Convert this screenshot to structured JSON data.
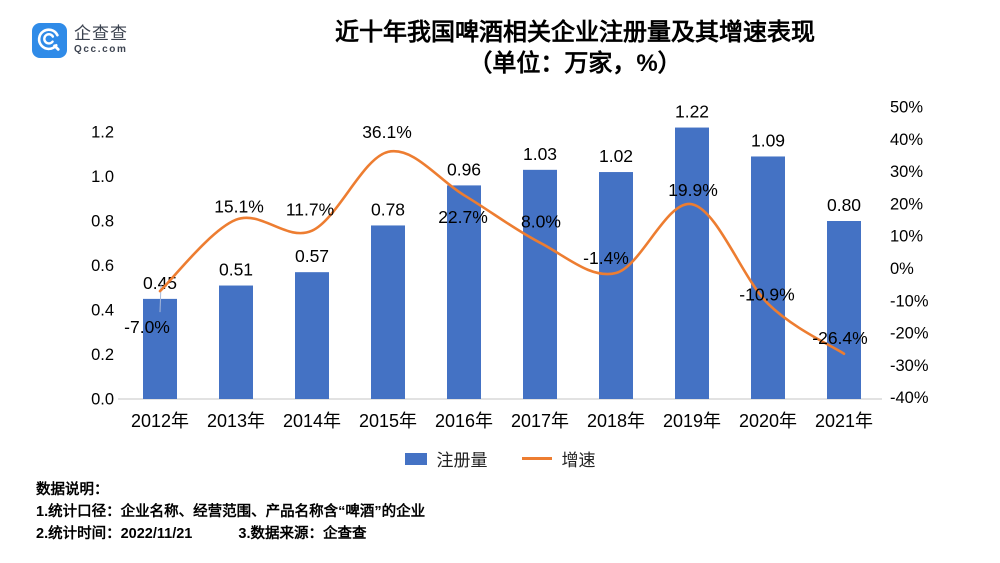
{
  "brand": {
    "name": "企查查",
    "domain": "Qcc.com",
    "blue": "#2F8BE8"
  },
  "title": {
    "line1": "近十年我国啤酒相关企业注册量及其增速表现",
    "line2": "（单位：万家，%）"
  },
  "legend": {
    "bar_label": "注册量",
    "line_label": "增速"
  },
  "footer": {
    "heading": "数据说明：",
    "line1": "1.统计口径：企业名称、经营范围、产品名称含“啤酒”的企业",
    "line2a": "2.统计时间：2022/11/21",
    "line2b": "3.数据来源：企查查"
  },
  "chart_data": {
    "type": "bar+line",
    "categories": [
      "2012年",
      "2013年",
      "2014年",
      "2015年",
      "2016年",
      "2017年",
      "2018年",
      "2019年",
      "2020年",
      "2021年"
    ],
    "series": [
      {
        "name": "注册量",
        "type": "bar",
        "axis": "left",
        "color": "#4472C4",
        "values": [
          0.45,
          0.51,
          0.57,
          0.78,
          0.96,
          1.03,
          1.02,
          1.22,
          1.09,
          0.8
        ],
        "labels": [
          "0.45",
          "0.51",
          "0.57",
          "0.78",
          "0.96",
          "1.03",
          "1.02",
          "1.22",
          "1.09",
          "0.80"
        ]
      },
      {
        "name": "增速",
        "type": "line",
        "axis": "right",
        "color": "#ED7D31",
        "values": [
          -7.0,
          15.1,
          11.7,
          36.1,
          22.7,
          8.0,
          -1.4,
          19.9,
          -10.9,
          -26.4
        ],
        "labels": [
          "-7.0%",
          "15.1%",
          "11.7%",
          "36.1%",
          "22.7%",
          "8.0%",
          "-1.4%",
          "19.9%",
          "-10.9%",
          "-26.4%"
        ],
        "label_offsets": [
          [
            -13,
            36
          ],
          [
            3,
            -13
          ],
          [
            -2,
            -21
          ],
          [
            -1,
            -20
          ],
          [
            -1,
            22
          ],
          [
            1,
            -21
          ],
          [
            -10,
            -15
          ],
          [
            1,
            -14
          ],
          [
            -1,
            -9
          ],
          [
            -4,
            -16
          ]
        ]
      }
    ],
    "left_axis": {
      "min": 0,
      "max": 1.2,
      "ticks": [
        "0.0",
        "0.2",
        "0.4",
        "0.6",
        "0.8",
        "1.0",
        "1.2"
      ]
    },
    "right_axis": {
      "min": -40,
      "max": 50,
      "ticks": [
        "50%",
        "40%",
        "30%",
        "20%",
        "10%",
        "0%",
        "-10%",
        "-20%",
        "-30%",
        "-40%"
      ]
    },
    "legend_position": "bottom",
    "grid": false
  }
}
